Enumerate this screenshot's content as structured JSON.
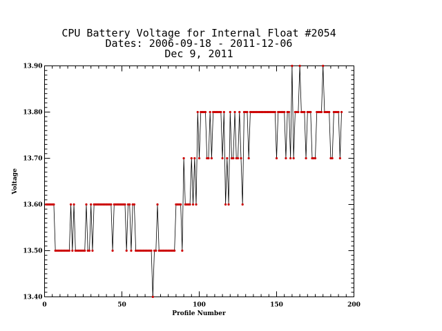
{
  "chart_data": {
    "type": "line",
    "title_lines": [
      "CPU Battery Voltage for Internal Float #2054",
      "Dates:  2006-09-18 -  2011-12-06",
      "Dec  9, 2011"
    ],
    "xlabel": "Profile Number",
    "ylabel": "Voltage",
    "xlim": [
      0,
      200
    ],
    "ylim": [
      13.4,
      13.9
    ],
    "x_ticks": [
      "0",
      "50",
      "100",
      "150",
      "200"
    ],
    "y_ticks": [
      "13.40",
      "13.50",
      "13.60",
      "13.70",
      "13.80",
      "13.90"
    ],
    "line_color": "#000000",
    "marker_color": "#cc0000",
    "grid": false,
    "series": [
      {
        "x": [
          1,
          2,
          3,
          4,
          5,
          6,
          7,
          8,
          9,
          10,
          11,
          12,
          13,
          14,
          15,
          16,
          17,
          18,
          19,
          20,
          21,
          22,
          23,
          24,
          25,
          26,
          27,
          28,
          29,
          30,
          31,
          32,
          33,
          34,
          35,
          36,
          37,
          38,
          39,
          40,
          41,
          42,
          43,
          44,
          45,
          46,
          47,
          48,
          49,
          50,
          51,
          52,
          53,
          54,
          55,
          56,
          57,
          58,
          59,
          60,
          61,
          62,
          63,
          64,
          65,
          66,
          67,
          68,
          69,
          70,
          71,
          72,
          73,
          74,
          75,
          76,
          77,
          78,
          79,
          80,
          81,
          82,
          83,
          84,
          85,
          86,
          87,
          88,
          89,
          90,
          91,
          92,
          93,
          94,
          95,
          96,
          97,
          98,
          99,
          100,
          101,
          102,
          103,
          104,
          105,
          106,
          107,
          108,
          109,
          110,
          111,
          112,
          113,
          114,
          115,
          116,
          117,
          118,
          119,
          120,
          121,
          122,
          123,
          124,
          125,
          126,
          127,
          128,
          129,
          130,
          131,
          132,
          133,
          134,
          135,
          136,
          137,
          138,
          139,
          140,
          141,
          142,
          143,
          144,
          145,
          146,
          147,
          148,
          149,
          150,
          151,
          152,
          153,
          154,
          155,
          156,
          157,
          158,
          159,
          160,
          161,
          162,
          163,
          164,
          165,
          166,
          167,
          168,
          169,
          170,
          171,
          172,
          173,
          174,
          175,
          176,
          177,
          178,
          179,
          180,
          181,
          182,
          183,
          184,
          185,
          186,
          187,
          188,
          189,
          190,
          191,
          192
        ],
        "y": [
          13.6,
          13.6,
          13.6,
          13.6,
          13.6,
          13.6,
          13.5,
          13.5,
          13.5,
          13.5,
          13.5,
          13.5,
          13.5,
          13.5,
          13.5,
          13.5,
          13.6,
          13.5,
          13.6,
          13.5,
          13.5,
          13.5,
          13.5,
          13.5,
          13.5,
          13.5,
          13.6,
          13.5,
          13.5,
          13.6,
          13.5,
          13.6,
          13.6,
          13.6,
          13.6,
          13.6,
          13.6,
          13.6,
          13.6,
          13.6,
          13.6,
          13.6,
          13.6,
          13.5,
          13.6,
          13.6,
          13.6,
          13.6,
          13.6,
          13.6,
          13.6,
          13.6,
          13.5,
          13.6,
          13.6,
          13.5,
          13.6,
          13.6,
          13.5,
          13.5,
          13.5,
          13.5,
          13.5,
          13.5,
          13.5,
          13.5,
          13.5,
          13.5,
          13.5,
          13.4,
          13.5,
          13.5,
          13.6,
          13.5,
          13.5,
          13.5,
          13.5,
          13.5,
          13.5,
          13.5,
          13.5,
          13.5,
          13.5,
          13.5,
          13.6,
          13.6,
          13.6,
          13.6,
          13.5,
          13.7,
          13.6,
          13.6,
          13.6,
          13.6,
          13.7,
          13.6,
          13.7,
          13.6,
          13.8,
          13.7,
          13.8,
          13.8,
          13.8,
          13.8,
          13.7,
          13.7,
          13.8,
          13.7,
          13.8,
          13.8,
          13.8,
          13.8,
          13.8,
          13.8,
          13.7,
          13.8,
          13.6,
          13.7,
          13.6,
          13.8,
          13.7,
          13.7,
          13.8,
          13.7,
          13.7,
          13.8,
          13.7,
          13.6,
          13.8,
          13.8,
          13.8,
          13.7,
          13.8,
          13.8,
          13.8,
          13.8,
          13.8,
          13.8,
          13.8,
          13.8,
          13.8,
          13.8,
          13.8,
          13.8,
          13.8,
          13.8,
          13.8,
          13.8,
          13.8,
          13.7,
          13.8,
          13.8,
          13.8,
          13.8,
          13.8,
          13.7,
          13.8,
          13.8,
          13.7,
          13.9,
          13.7,
          13.8,
          13.8,
          13.8,
          13.9,
          13.8,
          13.8,
          13.8,
          13.7,
          13.8,
          13.8,
          13.8,
          13.7,
          13.7,
          13.7,
          13.8,
          13.8,
          13.8,
          13.8,
          13.9,
          13.8,
          13.8,
          13.8,
          13.8,
          13.7,
          13.7,
          13.8,
          13.8,
          13.8,
          13.8,
          13.7,
          13.8
        ]
      }
    ]
  }
}
